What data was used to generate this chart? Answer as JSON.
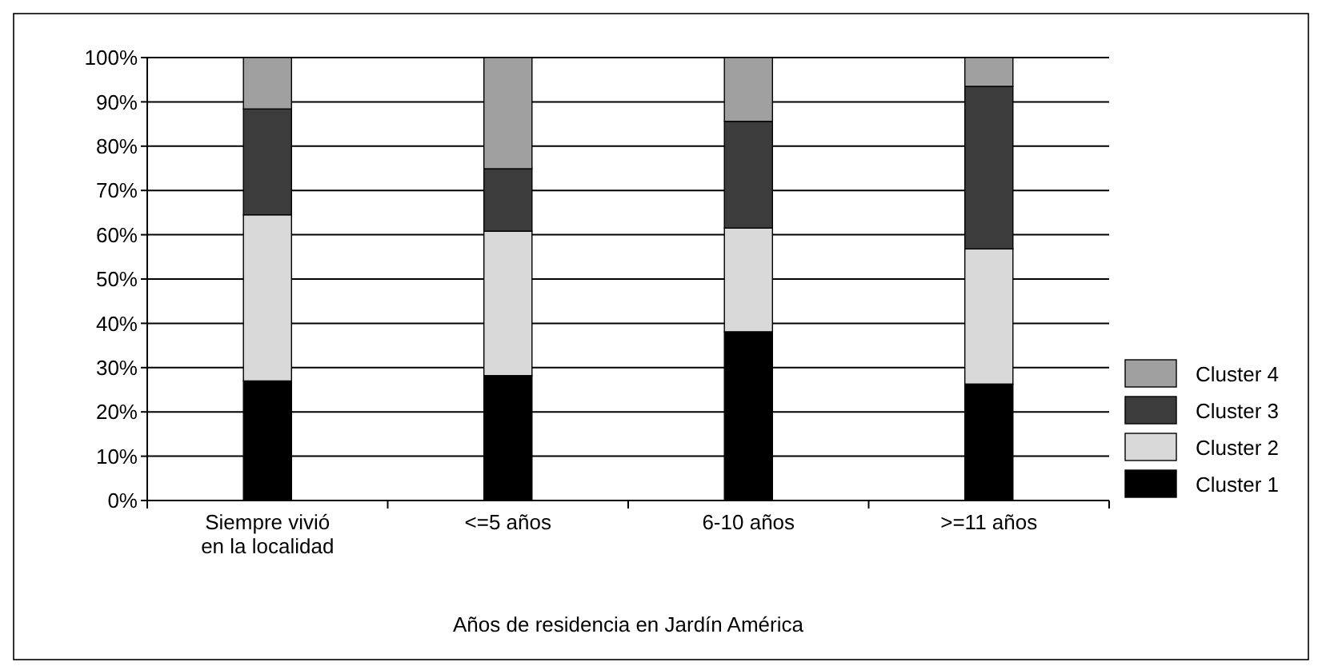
{
  "chart_data": {
    "type": "bar",
    "stacked": true,
    "xlabel": "Años de residencia en Jardín América",
    "categories": [
      "Siempre vivió\nen la localidad",
      "<=5 años",
      "6-10 años",
      ">=11 años"
    ],
    "series": [
      {
        "name": "Cluster 1",
        "color": "#000000",
        "values": [
          27,
          28.2,
          38.1,
          26.3
        ]
      },
      {
        "name": "Cluster 2",
        "color": "#d9d9d9",
        "values": [
          37.5,
          32.6,
          23.4,
          30.5
        ]
      },
      {
        "name": "Cluster 3",
        "color": "#3c3c3c",
        "values": [
          23.9,
          14.1,
          24.1,
          36.7
        ]
      },
      {
        "name": "Cluster 4",
        "color": "#a0a0a0",
        "values": [
          11.6,
          25.1,
          14.4,
          6.5
        ]
      }
    ],
    "ylim": [
      0,
      100
    ],
    "yticks": [
      {
        "value": 0,
        "label": "0%"
      },
      {
        "value": 10,
        "label": "10%"
      },
      {
        "value": 20,
        "label": "20%"
      },
      {
        "value": 30,
        "label": "30%"
      },
      {
        "value": 40,
        "label": "40%"
      },
      {
        "value": 50,
        "label": "50%"
      },
      {
        "value": 60,
        "label": "60%"
      },
      {
        "value": 70,
        "label": "70%"
      },
      {
        "value": 80,
        "label": "80%"
      },
      {
        "value": 90,
        "label": "90%"
      },
      {
        "value": 100,
        "label": "100%"
      }
    ],
    "grid": "y",
    "legend": "right"
  }
}
